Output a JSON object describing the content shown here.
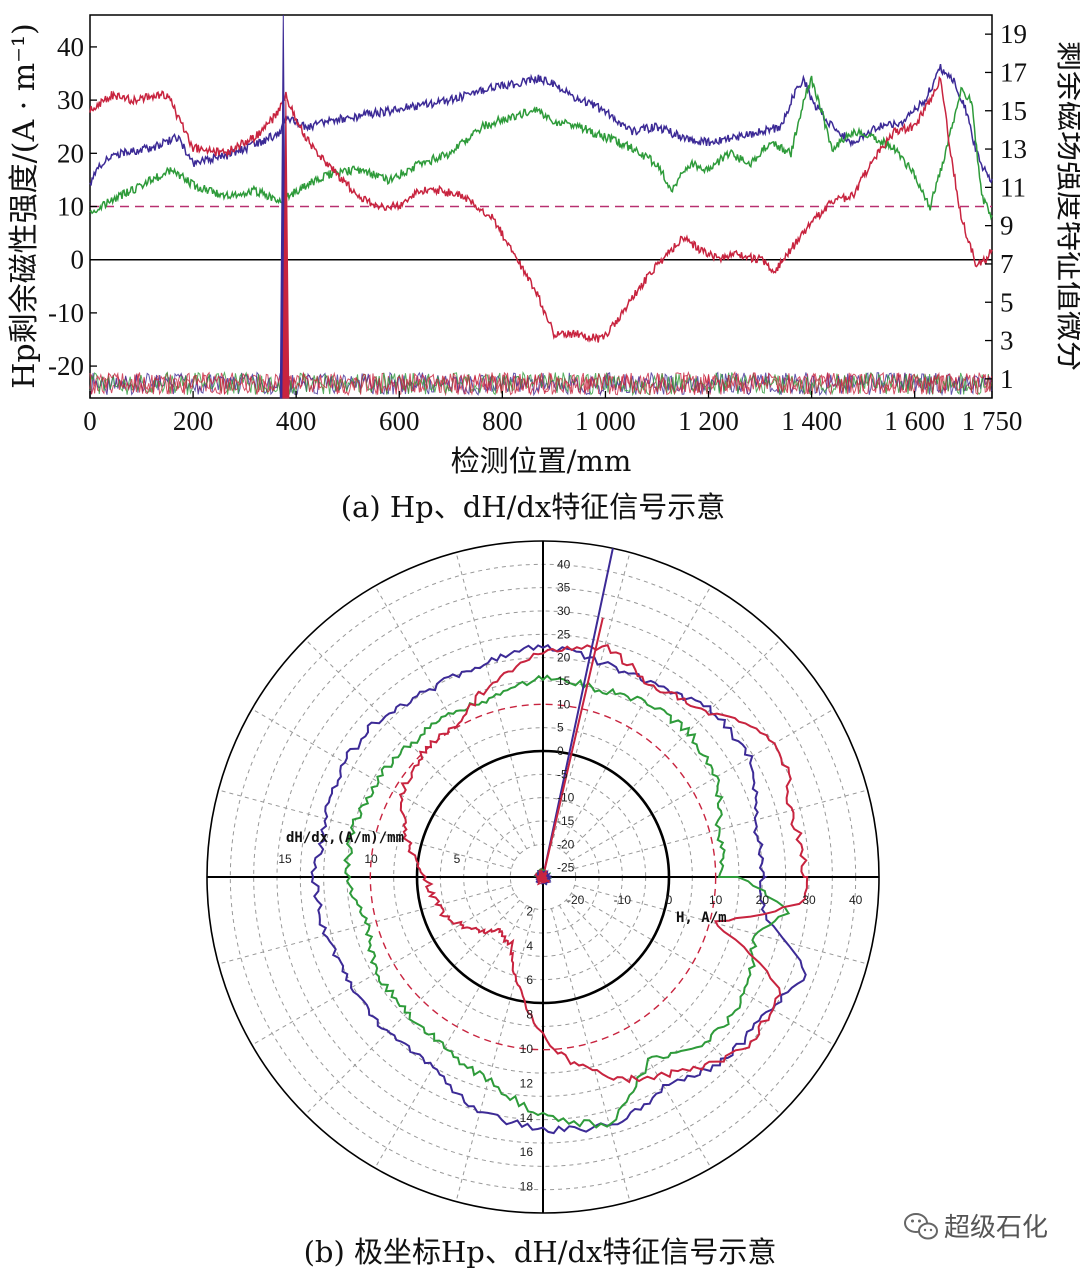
{
  "colors": {
    "blue": "#3c2a96",
    "green": "#2e9b3a",
    "red": "#c8243f",
    "dashed": "#b83070",
    "axis": "#000000",
    "grid": "#999999"
  },
  "chart_data": [
    {
      "type": "line",
      "panel_caption": "(a) Hp、dH/dx特征信号示意",
      "xlabel": "检测位置/mm",
      "ylabel_left": "Hp剩余磁性强度/(A · m⁻¹)",
      "ylabel_right": "剩余磁场强度特征值微分",
      "xlim": [
        0,
        1750
      ],
      "ylim_left": [
        -26,
        46
      ],
      "ylim_right": [
        0,
        20
      ],
      "x_ticks": [
        "0",
        "200",
        "400",
        "600",
        "800",
        "1 000",
        "1 200",
        "1 400",
        "1 600",
        "1 750"
      ],
      "x_tick_values": [
        0,
        200,
        400,
        600,
        800,
        1000,
        1200,
        1400,
        1600,
        1750
      ],
      "y_left_ticks": [
        "40",
        "30",
        "20",
        "10",
        "0",
        "-10",
        "-20"
      ],
      "y_left_tick_values": [
        40,
        30,
        20,
        10,
        0,
        -10,
        -20
      ],
      "y_right_ticks": [
        "19",
        "17",
        "15",
        "13",
        "11",
        "9",
        "7",
        "5",
        "3",
        "1"
      ],
      "y_right_tick_values": [
        19,
        17,
        15,
        13,
        11,
        9,
        7,
        5,
        3,
        1
      ],
      "reference_line": {
        "y": 10,
        "axis": "left",
        "style": "dashed"
      },
      "zero_line": {
        "y": 0,
        "axis": "left"
      },
      "series": [
        {
          "color": "blue",
          "axis": "left",
          "x": [
            0,
            20,
            60,
            120,
            170,
            200,
            240,
            280,
            330,
            370,
            380,
            420,
            460,
            520,
            580,
            640,
            700,
            760,
            820,
            870,
            900,
            950,
            1000,
            1050,
            1100,
            1150,
            1200,
            1250,
            1300,
            1340,
            1370,
            1385,
            1400,
            1440,
            1480,
            1530,
            1580,
            1620,
            1650,
            1680,
            1700,
            1720,
            1740,
            1750
          ],
          "y": [
            14,
            18,
            20,
            21,
            23,
            18,
            19,
            20,
            22,
            24,
            27,
            25,
            26,
            27,
            28,
            29,
            30,
            32,
            33,
            34,
            33,
            30,
            28,
            24,
            25,
            23,
            22,
            23,
            24,
            25,
            32,
            34,
            30,
            25,
            22,
            25,
            26,
            30,
            36,
            33,
            28,
            20,
            16,
            15
          ]
        },
        {
          "color": "green",
          "axis": "left",
          "x": [
            0,
            40,
            100,
            160,
            200,
            260,
            320,
            370,
            420,
            460,
            520,
            580,
            640,
            700,
            760,
            820,
            870,
            900,
            950,
            1000,
            1050,
            1100,
            1130,
            1160,
            1200,
            1240,
            1280,
            1320,
            1360,
            1385,
            1400,
            1440,
            1480,
            1520,
            1560,
            1600,
            1630,
            1660,
            1690,
            1710,
            1730,
            1750
          ],
          "y": [
            9,
            11,
            14,
            17,
            14,
            12,
            13,
            11,
            14,
            16,
            17,
            15,
            18,
            20,
            25,
            27,
            28,
            26,
            25,
            23,
            21,
            18,
            13,
            18,
            17,
            20,
            18,
            22,
            20,
            30,
            34,
            21,
            24,
            23,
            21,
            16,
            10,
            20,
            32,
            30,
            12,
            8
          ]
        },
        {
          "color": "red",
          "axis": "left",
          "x": [
            0,
            40,
            80,
            150,
            200,
            260,
            320,
            360,
            380,
            400,
            440,
            480,
            520,
            560,
            600,
            640,
            680,
            720,
            780,
            830,
            870,
            900,
            950,
            990,
            1020,
            1060,
            1100,
            1150,
            1200,
            1220,
            1250,
            1300,
            1330,
            1360,
            1400,
            1440,
            1480,
            1520,
            1560,
            1600,
            1630,
            1650,
            1670,
            1690,
            1720,
            1740,
            1750
          ],
          "y": [
            28,
            31,
            30,
            31,
            21,
            20,
            23,
            27,
            31,
            26,
            20,
            16,
            12,
            10,
            10,
            13,
            13,
            12,
            8,
            0,
            -7,
            -14,
            -14,
            -15,
            -12,
            -6,
            -1,
            4,
            1,
            0,
            1,
            0,
            -2,
            2,
            7,
            11,
            12,
            19,
            24,
            25,
            30,
            34,
            20,
            8,
            -1,
            0,
            2
          ]
        }
      ],
      "spikes": [
        {
          "color": "blue",
          "axis": "left",
          "x": 375,
          "y_top": 46,
          "y_bottom": -26
        },
        {
          "color": "red",
          "axis": "left",
          "x": 380,
          "y_top": 30,
          "y_bottom": -26
        }
      ]
    },
    {
      "type": "polar",
      "panel_caption": "(b) 极坐标Hp、dH/dx特征信号示意",
      "radial_label": "H, A/m",
      "dhdx_label": "dH/dx,(A/m)/mm",
      "r_range": [
        -27,
        45
      ],
      "r_ticks": [
        "40",
        "35",
        "30",
        "25",
        "20",
        "15",
        "10",
        "5",
        "0",
        "-5",
        "-10",
        "-15",
        "-20",
        "-25"
      ],
      "r_tick_values": [
        40,
        35,
        30,
        25,
        20,
        15,
        10,
        5,
        0,
        -5,
        -10,
        -15,
        -20,
        -25
      ],
      "h_axis_ticks": [
        "-20",
        "-10",
        "0",
        "10",
        "20",
        "30",
        "40"
      ],
      "h_axis_tick_values": [
        -20,
        -10,
        0,
        10,
        20,
        30,
        40
      ],
      "dhdx_left_ticks": [
        "15",
        "10",
        "5"
      ],
      "dhdx_left_tick_values": [
        15,
        10,
        5
      ],
      "dhdx_down_ticks": [
        "2",
        "4",
        "6",
        "8",
        "10",
        "12",
        "14",
        "16",
        "18"
      ],
      "dhdx_down_tick_values": [
        2,
        4,
        6,
        8,
        10,
        12,
        14,
        16,
        18
      ],
      "reference_circle": 10,
      "zero_circle": 0,
      "series": [
        {
          "color": "blue",
          "theta_deg": [
            0,
            15,
            30,
            45,
            55,
            70,
            85,
            95,
            110,
            125,
            140,
            155,
            170,
            180,
            195,
            210,
            225,
            240,
            255,
            270,
            285,
            300,
            315,
            330,
            340,
            350,
            360
          ],
          "r": [
            20,
            20,
            24,
            24,
            21,
            20,
            22,
            22,
            20,
            20,
            22,
            22,
            21,
            22,
            21,
            20,
            20,
            20,
            25,
            27,
            28,
            25,
            28,
            29,
            33,
            21,
            20
          ]
        },
        {
          "color": "green",
          "theta_deg": [
            0,
            15,
            30,
            45,
            60,
            75,
            90,
            105,
            120,
            135,
            150,
            165,
            180,
            195,
            210,
            225,
            240,
            255,
            270,
            285,
            300,
            315,
            330,
            345,
            352,
            360
          ],
          "r": [
            11,
            12,
            16,
            17,
            16,
            15,
            16,
            13,
            13,
            13,
            14,
            15,
            15,
            12,
            14,
            14,
            15,
            18,
            24,
            28,
            18,
            23,
            23,
            20,
            26,
            15
          ]
        },
        {
          "color": "red",
          "theta_deg": [
            0,
            15,
            30,
            45,
            60,
            75,
            90,
            105,
            120,
            135,
            150,
            165,
            180,
            190,
            200,
            215,
            230,
            245,
            260,
            275,
            290,
            305,
            320,
            335,
            345,
            355,
            360
          ],
          "r": [
            29,
            28,
            31,
            23,
            20,
            24,
            21,
            16,
            10,
            10,
            8,
            3,
            -2,
            -3,
            -4,
            -8,
            -12,
            -11,
            -1,
            11,
            19,
            24,
            30,
            29,
            10,
            30,
            29
          ]
        }
      ],
      "spikes": [
        {
          "color": "blue",
          "theta_deg": 78,
          "r_start": -27,
          "r_end": 45
        },
        {
          "color": "red",
          "theta_deg": 77,
          "r_start": -27,
          "r_end": 30
        }
      ]
    }
  ],
  "watermark": "超级石化",
  "watermark_icon": "wechat-icon"
}
